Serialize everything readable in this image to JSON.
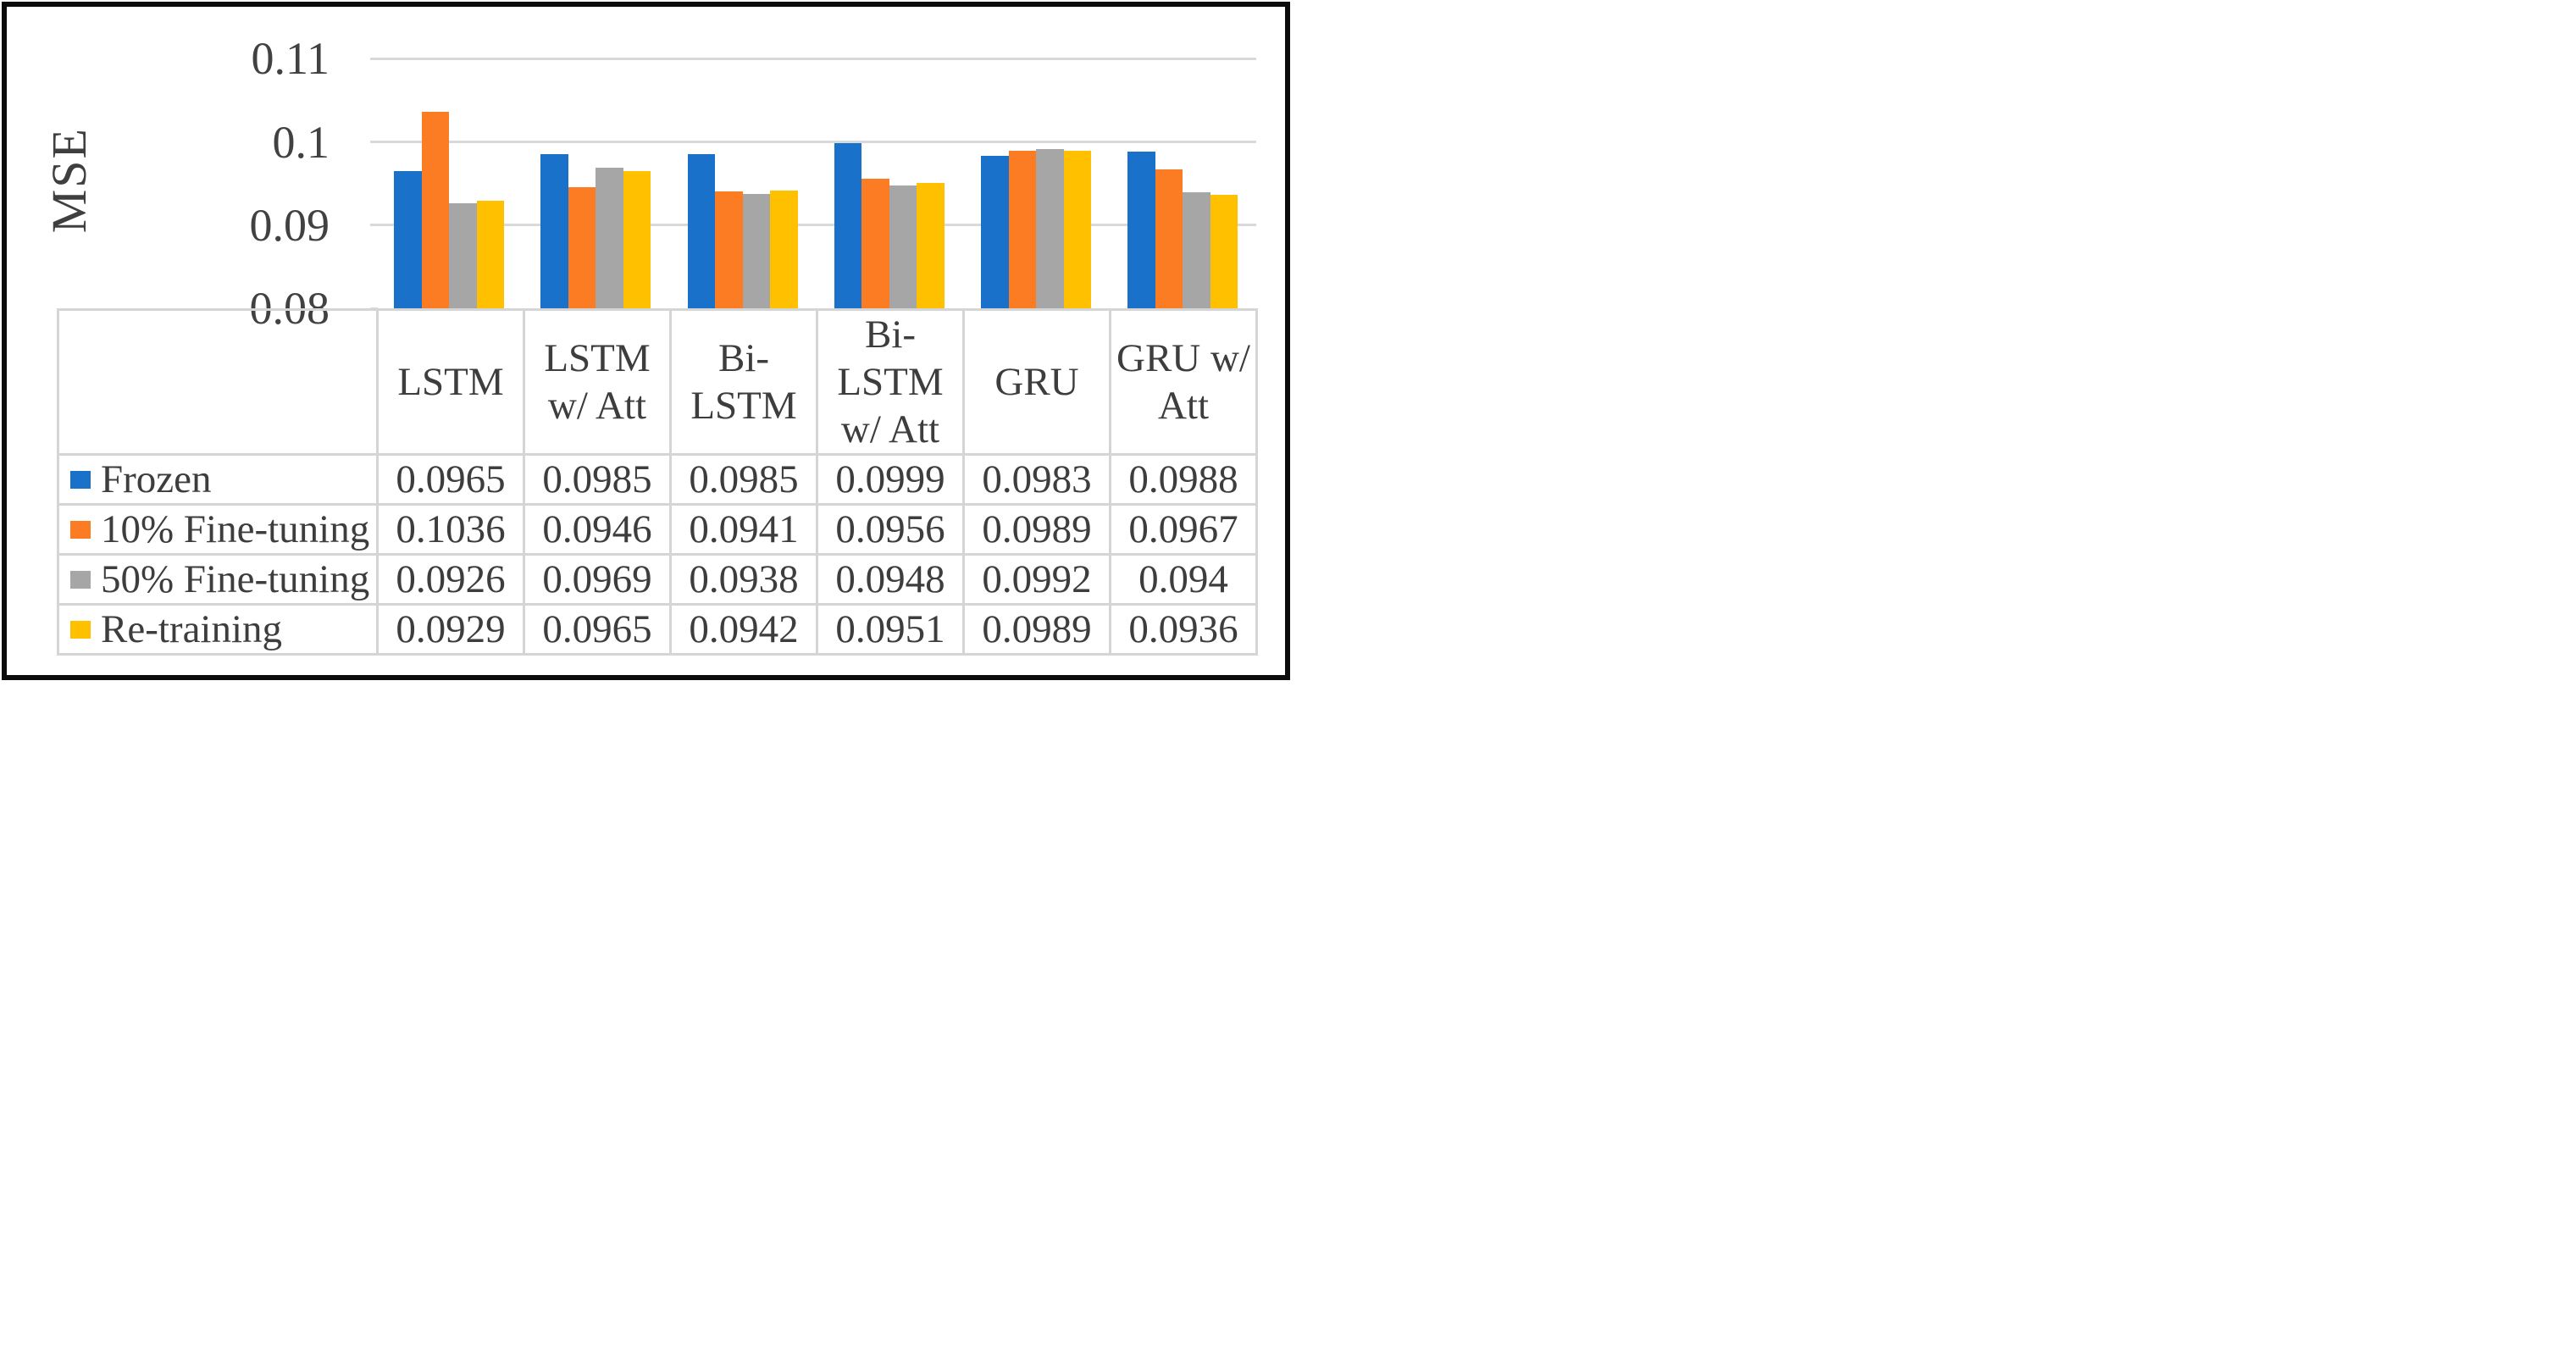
{
  "figure": {
    "y_axis_title": "MSE",
    "background": "#ffffff",
    "frame_border_color": "#0b0b0b",
    "gridline_color": "#d9d9d9",
    "table_border_color": "#d5d5d5",
    "text_color": "#3d3d3d"
  },
  "chart_data": {
    "type": "bar",
    "title": "",
    "xlabel": "",
    "ylabel": "MSE",
    "ylim": [
      0.08,
      0.11
    ],
    "yticks": [
      0.11,
      0.1,
      0.09,
      0.08
    ],
    "ytick_labels": [
      "0.11",
      "0.1",
      "0.09",
      "0.08"
    ],
    "grid": true,
    "legend_position": "table-left",
    "categories": [
      "LSTM",
      "LSTM w/ Att",
      "Bi-LSTM",
      "Bi-LSTM w/ Att",
      "GRU",
      "GRU w/ Att"
    ],
    "series": [
      {
        "name": "Frozen",
        "color": "#1971c9",
        "values": [
          0.0965,
          0.0985,
          0.0985,
          0.0999,
          0.0983,
          0.0988
        ]
      },
      {
        "name": "10% Fine-tuning",
        "color": "#fb7c23",
        "values": [
          0.1036,
          0.0946,
          0.0941,
          0.0956,
          0.0989,
          0.0967
        ]
      },
      {
        "name": "50% Fine-tuning",
        "color": "#a6a6a6",
        "values": [
          0.0926,
          0.0969,
          0.0938,
          0.0948,
          0.0992,
          0.094
        ]
      },
      {
        "name": "Re-training",
        "color": "#ffc000",
        "values": [
          0.0929,
          0.0965,
          0.0942,
          0.0951,
          0.0989,
          0.0936
        ]
      }
    ]
  },
  "table": {
    "column_headers": [
      "LSTM",
      "LSTM w/ Att",
      "Bi-LSTM",
      "Bi-LSTM w/ Att",
      "GRU",
      "GRU w/ Att"
    ],
    "rows": [
      {
        "label": "Frozen",
        "values": [
          "0.0965",
          "0.0985",
          "0.0985",
          "0.0999",
          "0.0983",
          "0.0988"
        ]
      },
      {
        "label": "10% Fine-tuning",
        "values": [
          "0.1036",
          "0.0946",
          "0.0941",
          "0.0956",
          "0.0989",
          "0.0967"
        ]
      },
      {
        "label": "50% Fine-tuning",
        "values": [
          "0.0926",
          "0.0969",
          "0.0938",
          "0.0948",
          "0.0992",
          "0.094"
        ]
      },
      {
        "label": "Re-training",
        "values": [
          "0.0929",
          "0.0965",
          "0.0942",
          "0.0951",
          "0.0989",
          "0.0936"
        ]
      }
    ]
  }
}
